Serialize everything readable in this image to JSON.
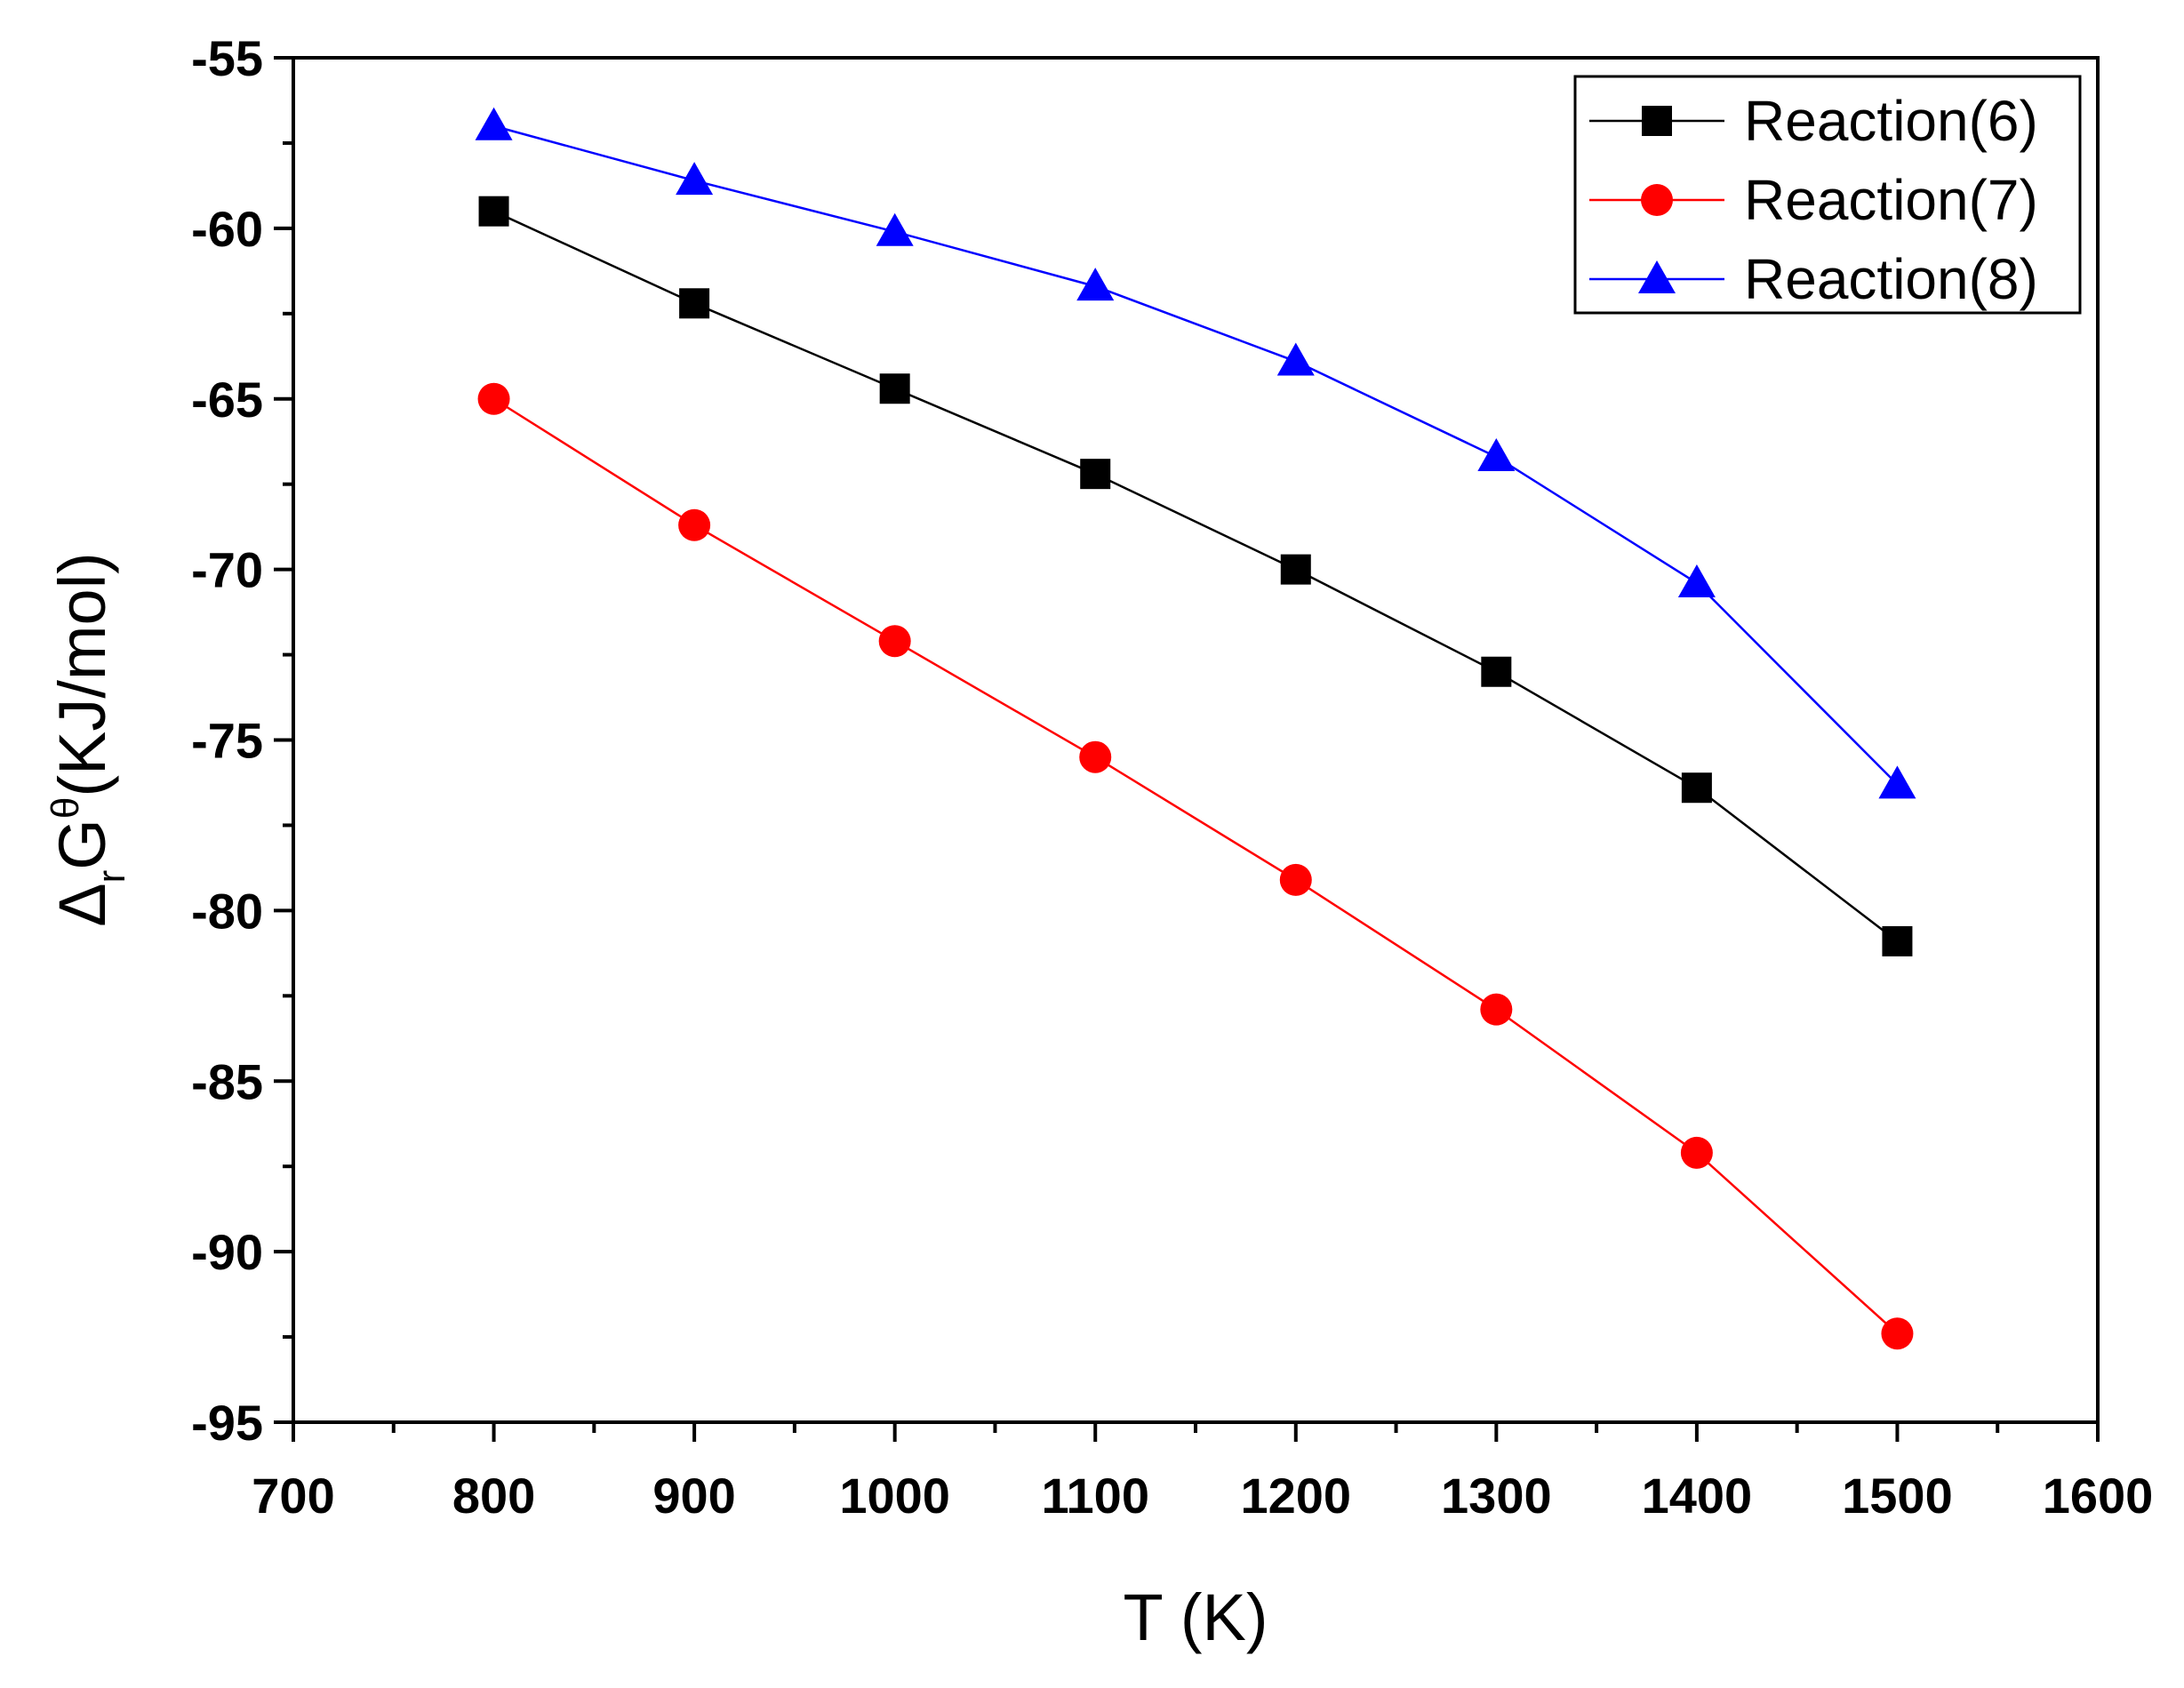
{
  "chart_data": {
    "type": "line",
    "title": "",
    "xlabel": "T (K)",
    "ylabel_parts": {
      "delta": "Δ",
      "subscript": "r",
      "main": "G",
      "superscript": "θ",
      "units": "(KJ/mol)"
    },
    "xlim": [
      700,
      1600
    ],
    "ylim": [
      -95,
      -55
    ],
    "x_ticks": [
      700,
      800,
      900,
      1000,
      1100,
      1200,
      1300,
      1400,
      1500,
      1600
    ],
    "y_ticks": [
      -55,
      -60,
      -65,
      -70,
      -75,
      -80,
      -85,
      -90,
      -95
    ],
    "x": [
      800,
      900,
      1000,
      1100,
      1200,
      1300,
      1400,
      1500
    ],
    "grid": false,
    "legend_position": "top-right",
    "series": [
      {
        "name": "Reaction(6)",
        "color": "#000000",
        "marker": "square",
        "values": [
          -59.5,
          -62.2,
          -64.7,
          -67.2,
          -70.0,
          -73.0,
          -76.4,
          -80.9
        ]
      },
      {
        "name": "Reaction(7)",
        "color": "#ff0000",
        "marker": "circle",
        "values": [
          -65.0,
          -68.7,
          -72.1,
          -75.5,
          -79.1,
          -82.9,
          -87.1,
          -92.4
        ]
      },
      {
        "name": "Reaction(8)",
        "color": "#0000ff",
        "marker": "triangle",
        "values": [
          -57.0,
          -58.6,
          -60.1,
          -61.7,
          -63.9,
          -66.7,
          -70.4,
          -76.3
        ]
      }
    ]
  }
}
